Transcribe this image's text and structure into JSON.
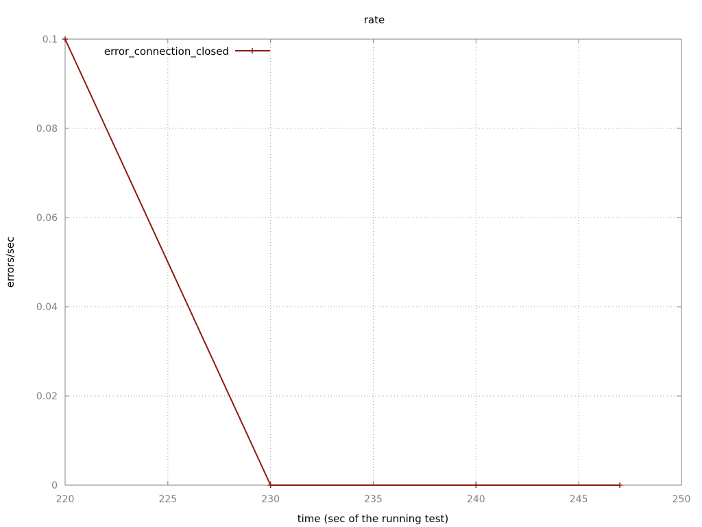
{
  "chart_data": {
    "type": "line",
    "title": "rate",
    "xlabel": "time (sec of the running test)",
    "ylabel": "errors/sec",
    "xlim": [
      220,
      250
    ],
    "ylim": [
      0,
      0.1
    ],
    "x_ticks": [
      220,
      225,
      230,
      235,
      240,
      245,
      250
    ],
    "y_ticks": [
      0,
      0.02,
      0.04,
      0.06,
      0.08,
      0.1
    ],
    "x_tick_labels": [
      "220",
      "225",
      "230",
      "235",
      "240",
      "245",
      "250"
    ],
    "y_tick_labels": [
      "0",
      "0.02",
      "0.04",
      "0.06",
      "0.08",
      "0.1"
    ],
    "grid": true,
    "legend_position": "top-left",
    "series": [
      {
        "name": "error_connection_closed",
        "color": "#8b1a10",
        "marker": "plus",
        "x": [
          220,
          230,
          240,
          247
        ],
        "y": [
          0.1,
          0,
          0,
          0
        ]
      }
    ]
  }
}
